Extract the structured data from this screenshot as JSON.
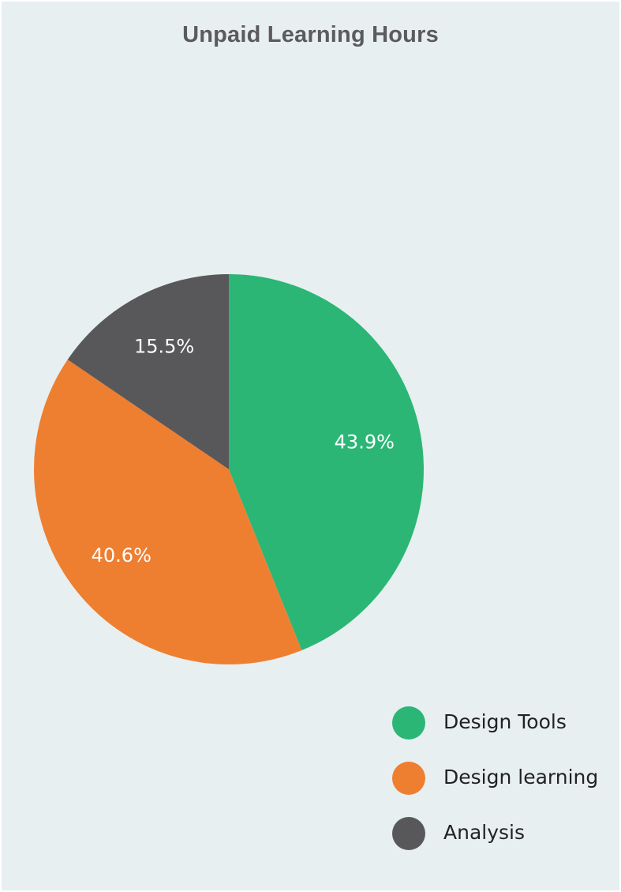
{
  "chart_data": {
    "type": "pie",
    "title": "Unpaid Learning Hours",
    "slices": [
      {
        "name": "Design Tools",
        "value": 43.9,
        "label": "43.9%",
        "color": "#2bb676"
      },
      {
        "name": "Design learning",
        "value": 40.6,
        "label": "40.6%",
        "color": "#ee7f31"
      },
      {
        "name": "Analysis",
        "value": 15.5,
        "label": "15.5%",
        "color": "#58585a"
      }
    ],
    "legend_position": "bottom-right"
  },
  "colors": {
    "background": "#e8eff0",
    "title": "#5b5b5d"
  }
}
